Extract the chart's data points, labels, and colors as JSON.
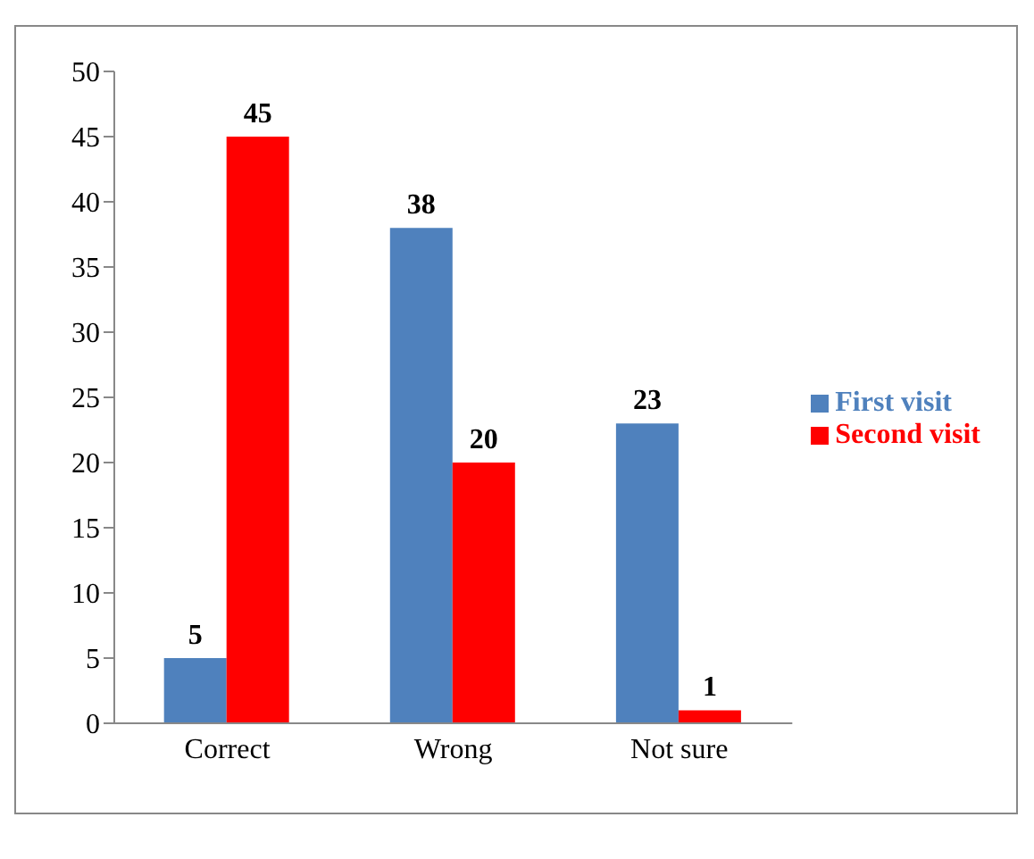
{
  "chart_data": {
    "type": "bar",
    "categories": [
      "Correct",
      "Wrong",
      "Not sure"
    ],
    "series": [
      {
        "name": "First visit",
        "color": "#4f81bd",
        "values": [
          5,
          38,
          23
        ]
      },
      {
        "name": "Second visit",
        "color": "#ff0000",
        "values": [
          45,
          20,
          1
        ]
      }
    ],
    "ylim": [
      0,
      50
    ],
    "yticks": [
      0,
      5,
      10,
      15,
      20,
      25,
      30,
      35,
      40,
      45,
      50
    ],
    "data_labels": true,
    "legend": "right",
    "grid": false
  }
}
